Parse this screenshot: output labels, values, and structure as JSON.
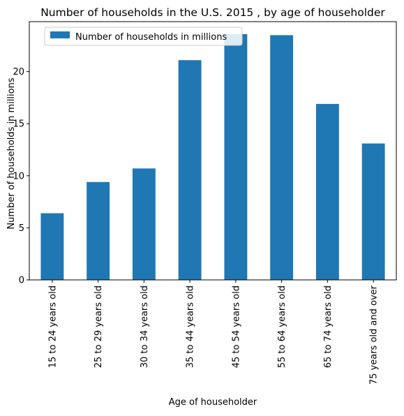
{
  "chart_data": {
    "type": "bar",
    "title": "Number of households in the U.S. 2015 , by age of householder",
    "xlabel": "Age of householder",
    "ylabel": "Number of households in millions",
    "categories": [
      "15 to 24 years old",
      "25 to 29 years old",
      "30 to 34 years old",
      "35 to 44 years old",
      "45 to 54 years old",
      "55 to 64 years old",
      "65 to 74 years old",
      "75 years old and over"
    ],
    "series": [
      {
        "name": "Number of households in millions",
        "values": [
          6.4,
          9.4,
          10.7,
          21.1,
          23.6,
          23.5,
          16.9,
          13.1
        ],
        "color": "#1f77b4"
      }
    ],
    "ylim": [
      0,
      24.8
    ],
    "yticks": [
      0,
      5,
      10,
      15,
      20
    ],
    "grid": false,
    "legend_position": "upper-left"
  }
}
